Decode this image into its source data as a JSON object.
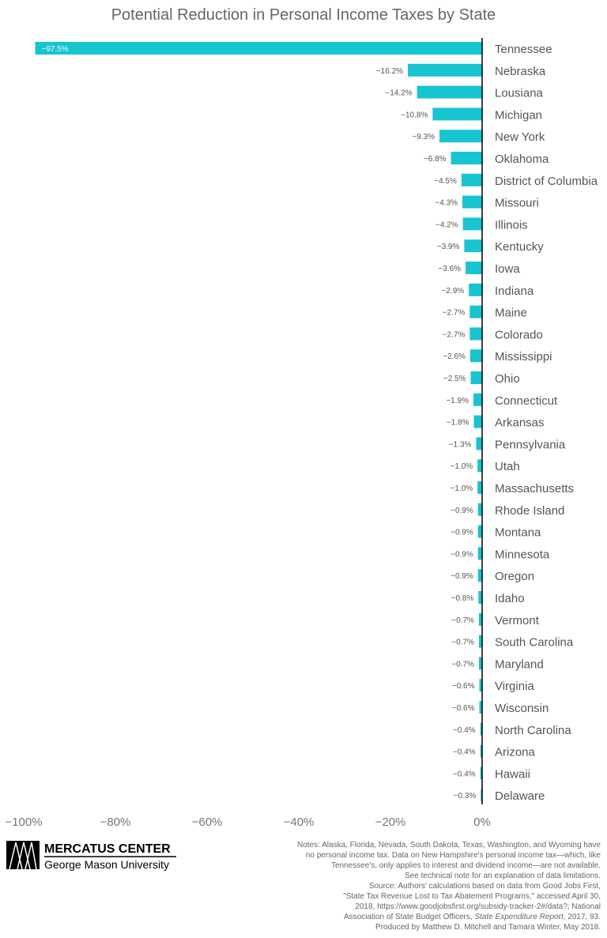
{
  "chart_data": {
    "type": "bar",
    "orientation": "horizontal",
    "title": "Potential Reduction in Personal Income Taxes by State",
    "categories": [
      "Tennessee",
      "Nebraska",
      "Lousiana",
      "Michigan",
      "New York",
      "Oklahoma",
      "District of Columbia",
      "Missouri",
      "Illinois",
      "Kentucky",
      "Iowa",
      "Indiana",
      "Maine",
      "Colorado",
      "Mississippi",
      "Ohio",
      "Connecticut",
      "Arkansas",
      "Pennsylvania",
      "Utah",
      "Massachusetts",
      "Rhode Island",
      "Montana",
      "Minnesota",
      "Oregon",
      "Idaho",
      "Vermont",
      "South Carolina",
      "Maryland",
      "Virginia",
      "Wisconsin",
      "North Carolina",
      "Arizona",
      "Hawaii",
      "Delaware"
    ],
    "values": [
      -97.5,
      -16.2,
      -14.2,
      -10.8,
      -9.3,
      -6.8,
      -4.5,
      -4.3,
      -4.2,
      -3.9,
      -3.6,
      -2.9,
      -2.7,
      -2.7,
      -2.6,
      -2.5,
      -1.9,
      -1.8,
      -1.3,
      -1.0,
      -1.0,
      -0.9,
      -0.9,
      -0.9,
      -0.9,
      -0.8,
      -0.7,
      -0.7,
      -0.7,
      -0.6,
      -0.6,
      -0.4,
      -0.4,
      -0.4,
      -0.3
    ],
    "xlim": [
      -100,
      0
    ],
    "xticks": [
      -100,
      -80,
      -60,
      -40,
      -20,
      0
    ],
    "xtick_labels": [
      "−100%",
      "−80%",
      "−60%",
      "−40%",
      "−20%",
      "0%"
    ],
    "bar_color": "#17c5d0",
    "grid": false
  },
  "logo": {
    "name": "MERCATUS CENTER",
    "sub": "George Mason University"
  },
  "notes": [
    "Notes: Alaska, Florida, Nevada, South Dakota, Texas, Washington, and Wyoming have",
    "no personal income tax. Data on New Hampshire's personal income tax—which, like",
    "Tennessee's, only applies to interest and dividend income—are not available.",
    "See technical note for an explanation of data limitations.",
    "Source: Authors' calculations based on data from Good Jobs First,",
    "\"State Tax Revenue Lost to Tax Abatement Programs,\" accessed April 30,",
    "2018, https://www.goodjobsfirst.org/subsidy-tracker-2#/data?; National"
  ],
  "notes_ital": {
    "pre": "Association of State Budget Officers, ",
    "ital": "State Expenditure Report",
    "post": ", 2017, 93."
  },
  "notes_last": "Produced by Matthew D. Mitchell and Tamara Winter, May 2018."
}
